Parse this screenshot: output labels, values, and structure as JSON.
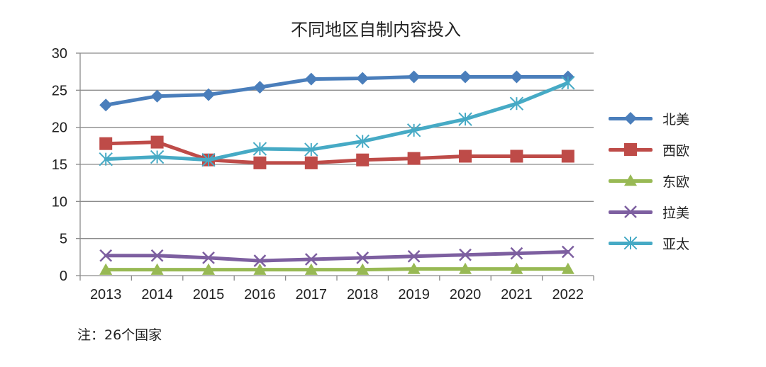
{
  "chart_data": {
    "type": "line",
    "title": "不同地区自制内容投入",
    "xlabel": "",
    "ylabel": "",
    "ylim": [
      0,
      30
    ],
    "yticks": [
      0,
      5,
      10,
      15,
      20,
      25,
      30
    ],
    "grid": true,
    "legend_position": "right",
    "categories": [
      "2013",
      "2014",
      "2015",
      "2016",
      "2017",
      "2018",
      "2019",
      "2020",
      "2021",
      "2022"
    ],
    "series": [
      {
        "name": "北美",
        "color": "#4a7ebb",
        "marker": "diamond",
        "values": [
          23.0,
          24.2,
          24.4,
          25.4,
          26.5,
          26.6,
          26.8,
          26.8,
          26.8,
          26.8
        ]
      },
      {
        "name": "西欧",
        "color": "#be4b48",
        "marker": "square",
        "values": [
          17.8,
          18.0,
          15.6,
          15.2,
          15.2,
          15.6,
          15.8,
          16.1,
          16.1,
          16.1
        ]
      },
      {
        "name": "东欧",
        "color": "#98b954",
        "marker": "triangle",
        "values": [
          0.8,
          0.8,
          0.8,
          0.8,
          0.8,
          0.8,
          0.9,
          0.9,
          0.9,
          0.9
        ]
      },
      {
        "name": "拉美",
        "color": "#7d5fa0",
        "marker": "x",
        "values": [
          2.7,
          2.7,
          2.4,
          2.0,
          2.2,
          2.4,
          2.6,
          2.8,
          3.0,
          3.2
        ]
      },
      {
        "name": "亚太",
        "color": "#46aac5",
        "marker": "asterisk",
        "values": [
          15.7,
          16.0,
          15.6,
          17.1,
          17.0,
          18.1,
          19.6,
          21.1,
          23.2,
          26.0
        ]
      }
    ]
  },
  "note": "注：26个国家"
}
